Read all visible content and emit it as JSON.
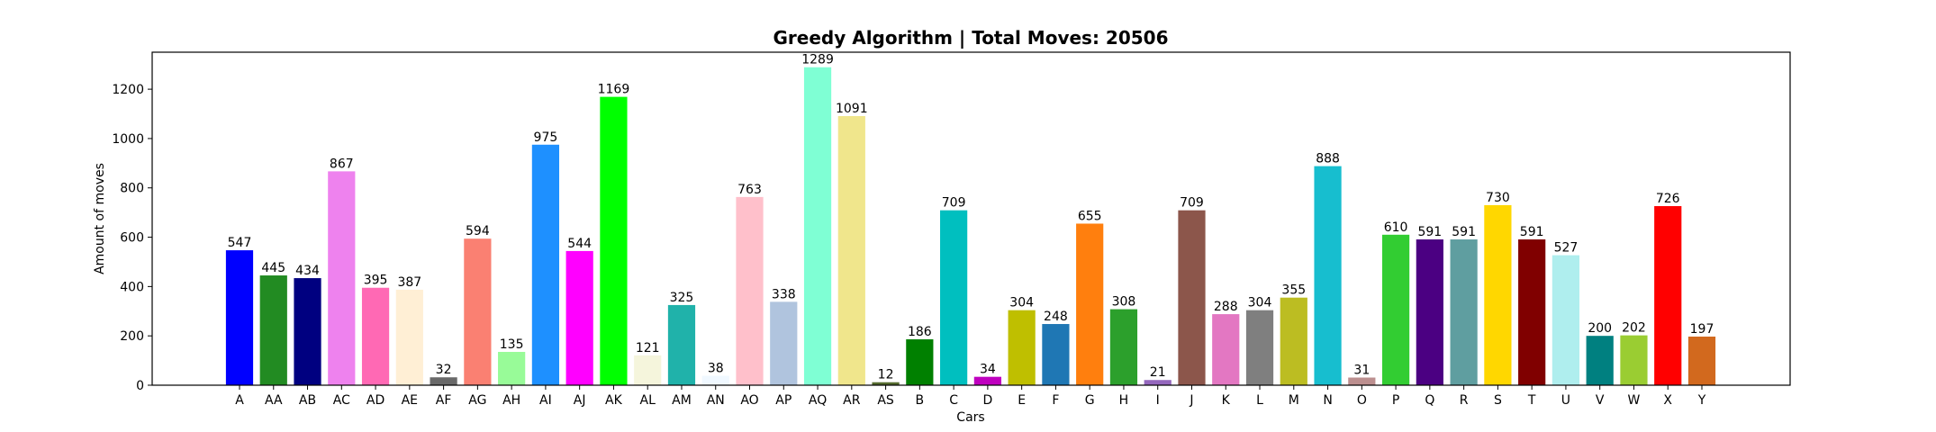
{
  "chart_data": {
    "type": "bar",
    "title": "Greedy Algorithm | Total Moves: 20506",
    "xlabel": "Cars",
    "ylabel": "Amount of moves",
    "ylim": [
      0,
      1350
    ],
    "yticks": [
      0,
      200,
      400,
      600,
      800,
      1000,
      1200
    ],
    "grid": false,
    "categories": [
      "A",
      "AA",
      "AB",
      "AC",
      "AD",
      "AE",
      "AF",
      "AG",
      "AH",
      "AI",
      "AJ",
      "AK",
      "AL",
      "AM",
      "AN",
      "AO",
      "AP",
      "AQ",
      "AR",
      "AS",
      "B",
      "C",
      "D",
      "E",
      "F",
      "G",
      "H",
      "I",
      "J",
      "K",
      "L",
      "M",
      "N",
      "O",
      "P",
      "Q",
      "R",
      "S",
      "T",
      "U",
      "V",
      "W",
      "X",
      "Y"
    ],
    "values": [
      547,
      445,
      434,
      867,
      395,
      387,
      32,
      594,
      135,
      975,
      544,
      1169,
      121,
      325,
      38,
      763,
      338,
      1289,
      1091,
      12,
      186,
      709,
      34,
      304,
      248,
      655,
      308,
      21,
      709,
      288,
      304,
      355,
      888,
      31,
      610,
      591,
      591,
      730,
      591,
      527,
      200,
      202,
      726,
      197
    ],
    "colors": [
      "#0000ff",
      "#228b22",
      "#000080",
      "#ee82ee",
      "#ff69b4",
      "#ffefd5",
      "#696969",
      "#fa8072",
      "#98fb98",
      "#1e90ff",
      "#ff00ff",
      "#00ff00",
      "#f5f5dc",
      "#20b2aa",
      "#f0f8ff",
      "#ffc0cb",
      "#b0c4de",
      "#7fffd4",
      "#f0e68c",
      "#556b2f",
      "#008000",
      "#00bfbf",
      "#bf00bf",
      "#bfbf00",
      "#1f77b4",
      "#ff7f0e",
      "#2ca02c",
      "#9467bd",
      "#8c564b",
      "#e377c2",
      "#7f7f7f",
      "#bcbd22",
      "#17becf",
      "#bc8f8f",
      "#32cd32",
      "#4b0082",
      "#5f9ea0",
      "#ffd700",
      "#800000",
      "#afeeee",
      "#008080",
      "#9acd32",
      "#ff0000",
      "#d2691e"
    ]
  }
}
